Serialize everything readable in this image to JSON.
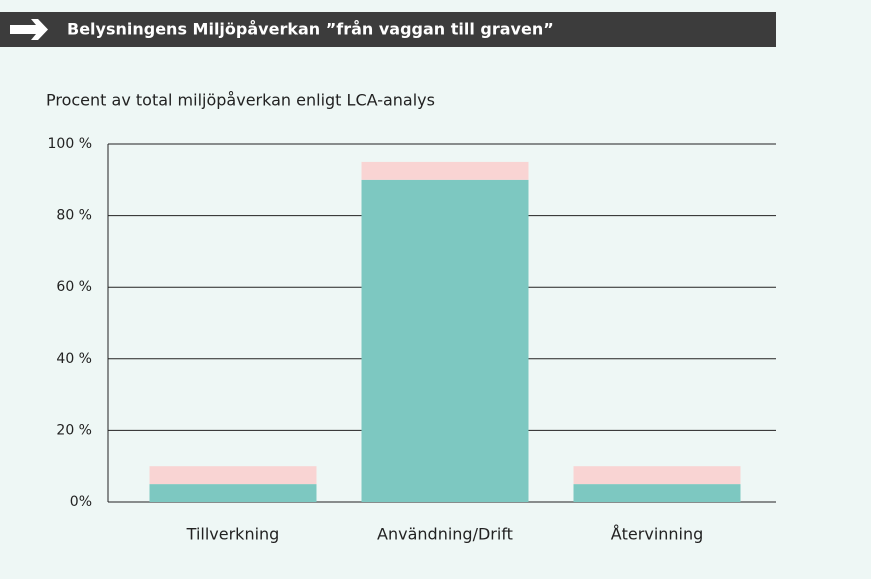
{
  "chart_data": {
    "type": "bar",
    "stacked": true,
    "title": "Belysningens Miljöpåverkan ”från vaggan till graven”",
    "subtitle": "Procent av total miljöpåverkan enligt LCA-analys",
    "categories": [
      "Tillverkning",
      "Användning/Drift",
      "Återvinning"
    ],
    "series": [
      {
        "color": "#7dc8c1",
        "values": [
          5,
          90,
          5
        ]
      },
      {
        "color": "#f9d4d3",
        "values": [
          5,
          5,
          5
        ]
      }
    ],
    "ylim": [
      0,
      100
    ],
    "yticks": [
      {
        "value": 0,
        "label": "0%"
      },
      {
        "value": 20,
        "label": "20 %"
      },
      {
        "value": 40,
        "label": "40 %"
      },
      {
        "value": 60,
        "label": "60 %"
      },
      {
        "value": 80,
        "label": "80 %"
      },
      {
        "value": 100,
        "label": "100 %"
      }
    ],
    "grid": true
  }
}
